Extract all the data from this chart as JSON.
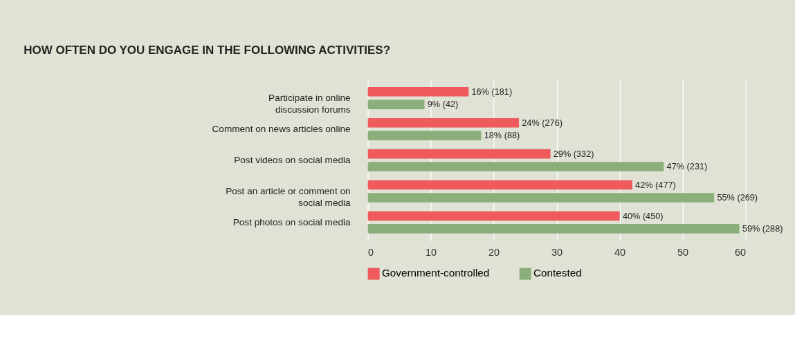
{
  "chart_data": {
    "type": "bar",
    "orientation": "horizontal",
    "title": "HOW OFTEN DO YOU ENGAGE IN THE FOLLOWING ACTIVITIES?",
    "categories": [
      "Participate in online discussion forums",
      "Comment on news articles online",
      "Post videos on social media",
      "Post an article or comment on social media",
      "Post photos on social media"
    ],
    "series": [
      {
        "name": "Government-controlled",
        "color": "#ef5a5c",
        "values": [
          16,
          24,
          29,
          42,
          40
        ],
        "value_labels": [
          "16% (181)",
          "24% (276)",
          "29% (332)",
          "42% (477)",
          "40% (450)"
        ]
      },
      {
        "name": "Contested",
        "color": "#8aaf7b",
        "values": [
          9,
          18,
          47,
          55,
          59
        ],
        "value_labels": [
          "9% (42)",
          "18% (88)",
          "47% (231)",
          "55% (269)",
          "59% (288)"
        ]
      }
    ],
    "xlim": [
      0,
      60
    ],
    "xticks": [
      0,
      10,
      20,
      30,
      40,
      50,
      60
    ],
    "grid": "x",
    "legend": "bottom"
  }
}
